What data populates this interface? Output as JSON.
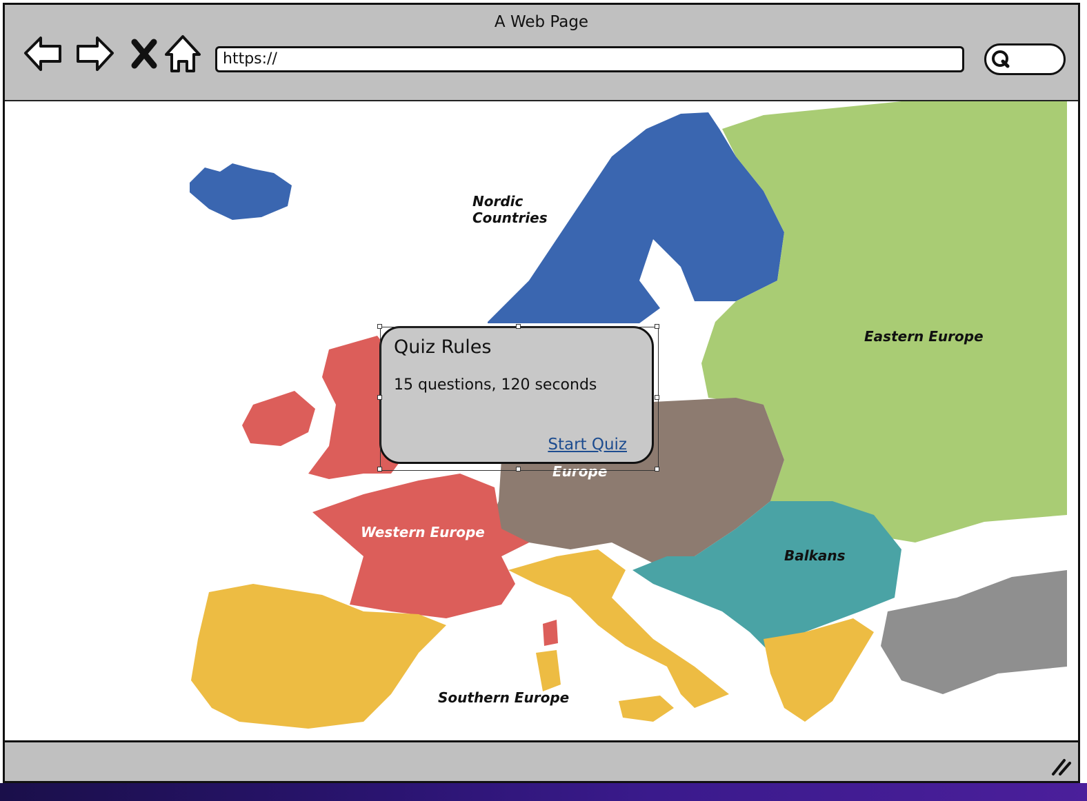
{
  "browser": {
    "title": "A Web Page",
    "url": "https://",
    "nav": {
      "back_icon": "back-arrow-icon",
      "forward_icon": "forward-arrow-icon",
      "stop_icon": "close-icon",
      "home_icon": "home-icon"
    },
    "search_icon": "search-icon"
  },
  "map": {
    "regions": {
      "nordic_line1": "Nordic",
      "nordic_line2": "Countries",
      "eastern": "Eastern Europe",
      "western": "Western Europe",
      "central_partial": "Europe",
      "balkans": "Balkans",
      "southern": "Southern Europe"
    },
    "colors": {
      "nordic": "#3a66b0",
      "eastern": "#a9cc74",
      "western": "#dc5e5a",
      "central": "#8d7b70",
      "balkans": "#4aa3a5",
      "southern": "#edbc43",
      "other": "#8f8f8f"
    }
  },
  "dialog": {
    "title": "Quiz Rules",
    "body": "15 questions, 120 seconds",
    "link": "Start Quiz"
  },
  "statusbar": {
    "resize_icon": "resize-grip-icon"
  }
}
